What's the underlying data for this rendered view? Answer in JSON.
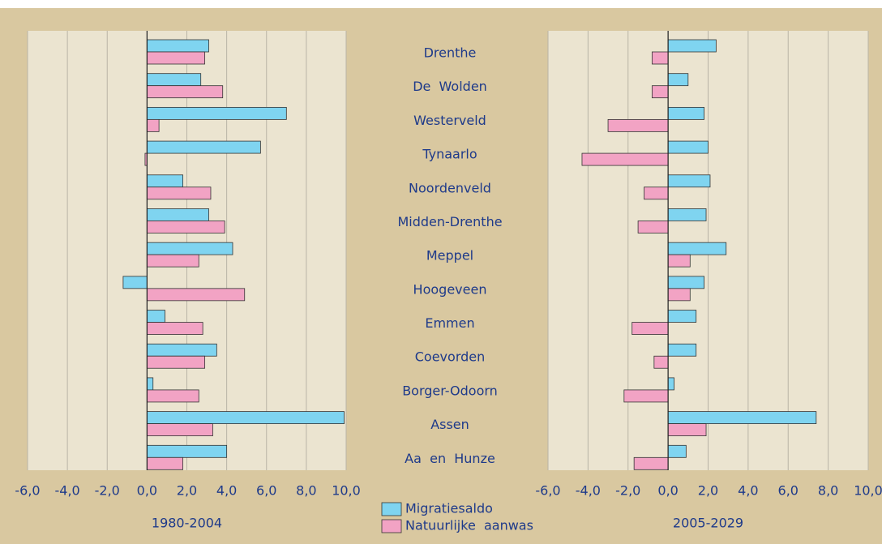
{
  "chart_data": [
    {
      "type": "bar",
      "orientation": "horizontal",
      "title": "1980-2004",
      "categories": [
        "Drenthe",
        "De  Wolden",
        "Westerveld",
        "Tynaarlo",
        "Noordenveld",
        "Midden-Drenthe",
        "Meppel",
        "Hoogeveen",
        "Emmen",
        "Coevorden",
        "Borger-Odoorn",
        "Assen",
        "Aa  en  Hunze"
      ],
      "series": [
        {
          "name": "Migratiesaldo",
          "color": "#7fd4f0",
          "values": [
            3.1,
            2.7,
            7.0,
            5.7,
            1.8,
            3.1,
            4.3,
            -1.2,
            0.9,
            3.5,
            0.3,
            9.9,
            4.0
          ]
        },
        {
          "name": "Natuurlijke  aanwas",
          "color": "#f2a3c4",
          "values": [
            2.9,
            3.8,
            0.6,
            -0.1,
            3.2,
            3.9,
            2.6,
            4.9,
            2.8,
            2.9,
            2.6,
            3.3,
            1.8
          ]
        }
      ],
      "xlim": [
        -6,
        10
      ],
      "xticks": [
        {
          "value": -6,
          "label": "-6,0"
        },
        {
          "value": -4,
          "label": "-4,0"
        },
        {
          "value": -2,
          "label": "-2,0"
        },
        {
          "value": 0,
          "label": "0,0"
        },
        {
          "value": 2,
          "label": "2,0"
        },
        {
          "value": 4,
          "label": "4,0"
        },
        {
          "value": 6,
          "label": "6,0"
        },
        {
          "value": 8,
          "label": "8,0"
        },
        {
          "value": 10,
          "label": "10,0"
        }
      ],
      "grid": true
    },
    {
      "type": "bar",
      "orientation": "horizontal",
      "title": "2005-2029",
      "series": [
        {
          "color": "#7fd4f0",
          "values": [
            2.4,
            1.0,
            1.8,
            2.0,
            2.1,
            1.9,
            2.9,
            1.8,
            1.4,
            1.4,
            0.3,
            7.4,
            0.9
          ]
        },
        {
          "color": "#f2a3c4",
          "values": [
            -0.8,
            -0.8,
            -3.0,
            -4.3,
            -1.2,
            -1.5,
            1.1,
            1.1,
            -1.8,
            -0.7,
            -2.2,
            1.9,
            -1.7
          ]
        }
      ],
      "xlim": [
        -6,
        10
      ],
      "xticks": [
        {
          "value": -6,
          "label": "-6,0"
        },
        {
          "value": -4,
          "label": "-4,0"
        },
        {
          "value": -2,
          "label": "-2,0"
        },
        {
          "value": 0,
          "label": "0,0"
        },
        {
          "value": 2,
          "label": "2,0"
        },
        {
          "value": 4,
          "label": "4,0"
        },
        {
          "value": 6,
          "label": "6,0"
        },
        {
          "value": 8,
          "label": "8,0"
        },
        {
          "value": 10,
          "label": "10,0"
        }
      ],
      "grid": true
    }
  ]
}
